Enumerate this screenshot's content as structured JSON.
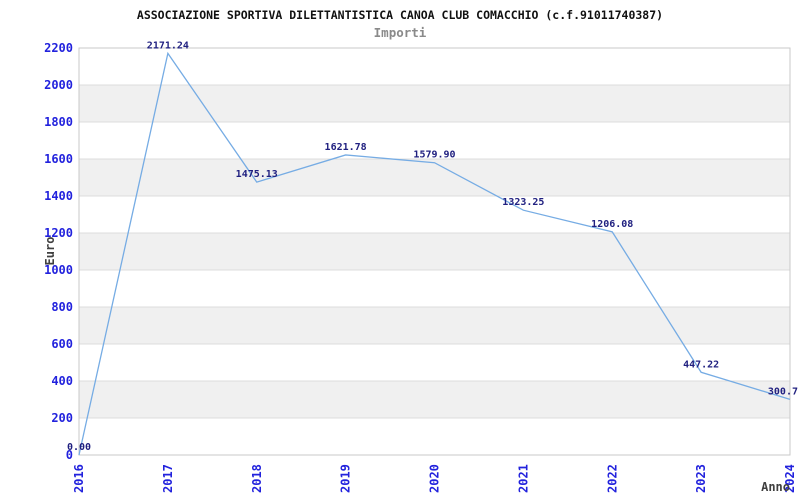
{
  "chart_data": {
    "type": "line",
    "title": "ASSOCIAZIONE SPORTIVA DILETTANTISTICA CANOA CLUB COMACCHIO (c.f.91011740387)",
    "subtitle": "Importi",
    "xlabel": "Anno",
    "ylabel": "Euro",
    "categories": [
      "2016",
      "2017",
      "2018",
      "2019",
      "2020",
      "2021",
      "2022",
      "2023",
      "2024"
    ],
    "series": [
      {
        "name": "Importi",
        "values": [
          0.0,
          2171.24,
          1475.13,
          1621.78,
          1579.9,
          1323.25,
          1206.08,
          447.22,
          300.7
        ],
        "point_labels": [
          "0.00",
          "2171.24",
          "1475.13",
          "1621.78",
          "1579.90",
          "1323.25",
          "1206.08",
          "447.22",
          "300.7"
        ]
      }
    ],
    "ylim": [
      0,
      2200
    ],
    "ytick_step": 200,
    "ytick_labels": [
      "0",
      "200",
      "400",
      "600",
      "800",
      "1000",
      "1200",
      "1400",
      "1600",
      "1800",
      "2000",
      "2200"
    ],
    "grid": true,
    "legend_position": "none",
    "colors": {
      "line": "#76ace4",
      "tick_label": "#2222dd",
      "point_label": "#202080",
      "axis_name": "#404040",
      "title": "#111111",
      "subtitle": "#8a8a8a",
      "band": "#f0f0f0",
      "gridline": "#dcdcdc",
      "border": "#c9c9c9",
      "background": "#ffffff"
    }
  }
}
